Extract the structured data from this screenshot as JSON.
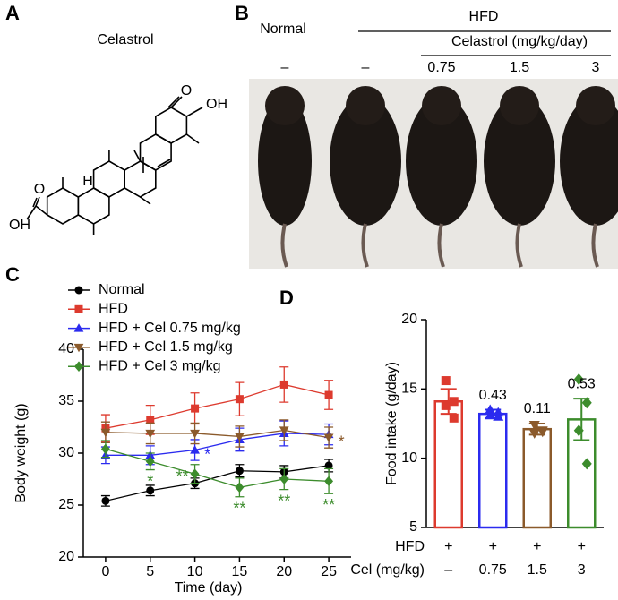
{
  "panel_labels": [
    "A",
    "B",
    "C",
    "D"
  ],
  "structure": {
    "title": "Celastrol",
    "ketone": "O",
    "hydroxyl": "OH",
    "acid_oxygen": "O",
    "acid_hydroxyl": "OH",
    "hydrogen": "H"
  },
  "photo": {
    "control": "Normal",
    "diet": "HFD",
    "treatment": "Celastrol (mg/kg/day)",
    "groups": [
      "–",
      "–",
      "0.75",
      "1.5",
      "3"
    ]
  },
  "chart_data": [
    {
      "type": "line",
      "x": [
        0,
        5,
        10,
        15,
        20,
        25
      ],
      "xlim": [
        -2.5,
        27.5
      ],
      "xticks": [
        0,
        5,
        10,
        15,
        20,
        25
      ],
      "ylim": [
        20,
        40
      ],
      "yticks": [
        20,
        25,
        30,
        35,
        40
      ],
      "x_label": "Time (day)",
      "y_label": "Body weight (g)",
      "series": [
        {
          "name": "Normal",
          "color": "#000000",
          "marker": "circle",
          "values": [
            25.4,
            26.4,
            27.1,
            28.3,
            28.2,
            28.8
          ],
          "errors": [
            0.5,
            0.5,
            0.5,
            0.6,
            0.6,
            0.6
          ],
          "significance": [
            null,
            null,
            null,
            null,
            null,
            null
          ]
        },
        {
          "name": "HFD",
          "color": "#dd3a2e",
          "marker": "square",
          "values": [
            32.4,
            33.2,
            34.3,
            35.2,
            36.6,
            35.6
          ],
          "errors": [
            1.3,
            1.4,
            1.5,
            1.6,
            1.7,
            1.4
          ],
          "significance": [
            null,
            null,
            null,
            null,
            null,
            null
          ]
        },
        {
          "name": "HFD + Cel 0.75 mg/kg",
          "color": "#2b2bef",
          "marker": "triangle-up",
          "values": [
            29.8,
            29.8,
            30.3,
            31.3,
            31.9,
            31.8
          ],
          "errors": [
            0.8,
            0.9,
            1.0,
            1.1,
            1.2,
            1.0
          ],
          "significance": [
            null,
            null,
            "*",
            null,
            null,
            null
          ]
        },
        {
          "name": "HFD + Cel 1.5 mg/kg",
          "color": "#8b5a2b",
          "marker": "triangle-down",
          "values": [
            32.0,
            31.9,
            31.9,
            31.6,
            32.2,
            31.5
          ],
          "errors": [
            1.0,
            1.0,
            1.0,
            1.0,
            1.0,
            1.0
          ],
          "significance": [
            null,
            null,
            null,
            null,
            null,
            "*"
          ]
        },
        {
          "name": "HFD + Cel 3 mg/kg",
          "color": "#3c8c2c",
          "marker": "diamond",
          "values": [
            30.4,
            29.2,
            28.0,
            26.7,
            27.5,
            27.3
          ],
          "errors": [
            0.8,
            0.8,
            0.9,
            0.9,
            1.0,
            1.2
          ],
          "significance": [
            null,
            "*",
            "**",
            "**",
            "**",
            "**"
          ]
        }
      ]
    },
    {
      "type": "bar",
      "ylim": [
        5,
        20
      ],
      "yticks": [
        5,
        10,
        15,
        20
      ],
      "y_label": "Food intake (g/day)",
      "values": [
        14.1,
        13.2,
        12.1,
        12.8
      ],
      "errors": [
        0.9,
        0.3,
        0.4,
        1.5
      ],
      "colors": [
        "#dd3a2e",
        "#2b2bef",
        "#8b5a2b",
        "#3c8c2c"
      ],
      "markers": [
        "square",
        "triangle-up",
        "triangle-down",
        "diamond"
      ],
      "points": [
        [
          15.6,
          14.1,
          13.8,
          12.9
        ],
        [
          13.5,
          13.3,
          13.1,
          13.0
        ],
        [
          12.4,
          12.0,
          11.8,
          11.9
        ],
        [
          15.7,
          14.0,
          12.0,
          9.6
        ]
      ],
      "p_values": [
        null,
        0.43,
        0.11,
        0.53
      ],
      "treatment_rows": [
        {
          "label": "HFD",
          "values": [
            "+",
            "+",
            "+",
            "+"
          ]
        },
        {
          "label": "Cel (mg/kg)",
          "values": [
            "–",
            "0.75",
            "1.5",
            "3"
          ]
        }
      ]
    }
  ]
}
